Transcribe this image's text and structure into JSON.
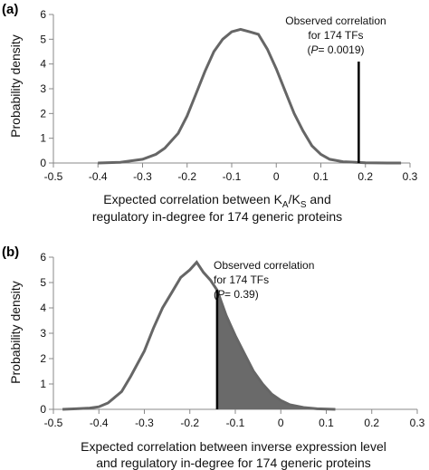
{
  "chart_data": [
    {
      "panel_label": "(a)",
      "type": "line",
      "ylabel": "Probability density",
      "xlabel_line1": "Expected correlation between K",
      "xlabel_sub_a": "A",
      "xlabel_slash": "/K",
      "xlabel_sub_s": "S",
      "xlabel_line1_end": " and",
      "xlabel_line2": "regulatory in-degree for 174 generic proteins",
      "xlim": [
        -0.5,
        0.3
      ],
      "ylim": [
        0,
        6
      ],
      "xticks": [
        "-0.5",
        "-0.4",
        "-0.3",
        "-0.2",
        "-0.1",
        "0",
        "0.1",
        "0.2",
        "0.3"
      ],
      "yticks": [
        "0",
        "1",
        "2",
        "3",
        "4",
        "5",
        "6"
      ],
      "curve": {
        "x": [
          -0.4,
          -0.35,
          -0.3,
          -0.27,
          -0.25,
          -0.22,
          -0.2,
          -0.18,
          -0.16,
          -0.14,
          -0.12,
          -0.1,
          -0.08,
          -0.06,
          -0.04,
          -0.02,
          0,
          0.02,
          0.04,
          0.06,
          0.08,
          0.1,
          0.12,
          0.15,
          0.2,
          0.25,
          0.28
        ],
        "y": [
          0,
          0.03,
          0.15,
          0.35,
          0.6,
          1.2,
          1.9,
          2.8,
          3.7,
          4.5,
          5.0,
          5.3,
          5.4,
          5.3,
          5.2,
          4.6,
          3.8,
          2.9,
          2.0,
          1.3,
          0.7,
          0.35,
          0.15,
          0.05,
          0.01,
          0.0,
          0.0
        ]
      },
      "observed": {
        "x": 0.185,
        "label_1": "Observed correlation",
        "label_2": "for 174 TFs",
        "label_p": "P",
        "label_eq": "= 0.0019",
        "label_open": "(",
        "label_close": ")"
      }
    },
    {
      "panel_label": "(b)",
      "type": "line",
      "ylabel": "Probability density",
      "xlabel_line1": "Expected correlation between inverse expression level",
      "xlabel_line2": "and regulatory in-degree for 174 generic proteins",
      "xlim": [
        -0.5,
        0.3
      ],
      "ylim": [
        0,
        6
      ],
      "xticks": [
        "-0.5",
        "-0.4",
        "-0.3",
        "-0.2",
        "-0.1",
        "0",
        "0.1",
        "0.2",
        "0.3"
      ],
      "yticks": [
        "0",
        "1",
        "2",
        "3",
        "4",
        "5",
        "6"
      ],
      "curve": {
        "x": [
          -0.48,
          -0.45,
          -0.42,
          -0.4,
          -0.38,
          -0.35,
          -0.33,
          -0.3,
          -0.28,
          -0.26,
          -0.24,
          -0.22,
          -0.2,
          -0.185,
          -0.17,
          -0.155,
          -0.14,
          -0.12,
          -0.1,
          -0.08,
          -0.06,
          -0.04,
          -0.02,
          0,
          0.02,
          0.05,
          0.08,
          0.12
        ],
        "y": [
          0.0,
          0.02,
          0.05,
          0.1,
          0.25,
          0.7,
          1.3,
          2.3,
          3.2,
          4.0,
          4.6,
          5.2,
          5.5,
          5.8,
          5.4,
          5.1,
          4.7,
          3.7,
          2.9,
          2.2,
          1.5,
          1.0,
          0.6,
          0.35,
          0.18,
          0.07,
          0.02,
          0.0
        ]
      },
      "observed": {
        "x": -0.14,
        "label_1": "Observed correlation",
        "label_2": "for 174 TFs",
        "label_p": "P",
        "label_eq": "= 0.39",
        "label_open": "(",
        "label_close": ")"
      }
    }
  ]
}
